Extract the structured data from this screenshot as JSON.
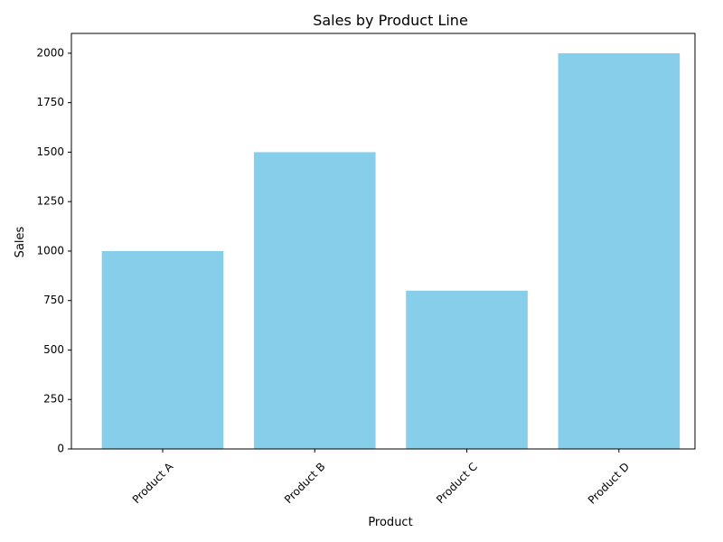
{
  "chart_data": {
    "type": "bar",
    "title": "Sales by Product Line",
    "xlabel": "Product",
    "ylabel": "Sales",
    "categories": [
      "Product A",
      "Product B",
      "Product C",
      "Product D"
    ],
    "values": [
      1000,
      1500,
      800,
      2000
    ],
    "ylim": [
      0,
      2100
    ],
    "yticks": [
      0,
      250,
      500,
      750,
      1000,
      1250,
      1500,
      1750,
      2000
    ],
    "bar_color": "#87CEEB",
    "grid": false,
    "x_tick_rotation_deg": 45
  }
}
